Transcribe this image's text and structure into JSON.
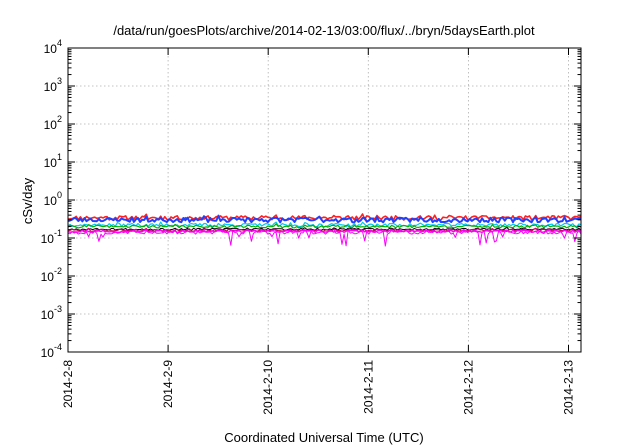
{
  "chart_data": {
    "type": "line",
    "title": "/data/run/goesPlots/archive/2014-02-13/03:00/flux/../bryn/5daysEarth.plot",
    "xlabel": "Coordinated Universal Time (UTC)",
    "ylabel": "cSv/day",
    "yscale": "log",
    "ylim": [
      0.0001,
      10000
    ],
    "xlim": [
      "2014-02-08T00:00",
      "2014-02-13T03:00"
    ],
    "grid": true,
    "x_ticks": [
      {
        "label": "2014-2-8",
        "at": "2014-02-08T00:00"
      },
      {
        "label": "2014-2-9",
        "at": "2014-02-09T00:00"
      },
      {
        "label": "2014-2-10",
        "at": "2014-02-10T00:00"
      },
      {
        "label": "2014-2-11",
        "at": "2014-02-11T00:00"
      },
      {
        "label": "2014-2-12",
        "at": "2014-02-12T00:00"
      },
      {
        "label": "2014-2-13",
        "at": "2014-02-13T00:00"
      }
    ],
    "y_ticks": [
      {
        "base": "10",
        "exp": "-4",
        "value": 0.0001
      },
      {
        "base": "10",
        "exp": "-3",
        "value": 0.001
      },
      {
        "base": "10",
        "exp": "-2",
        "value": 0.01
      },
      {
        "base": "10",
        "exp": "-1",
        "value": 0.1
      },
      {
        "base": "10",
        "exp": "0",
        "value": 1
      },
      {
        "base": "10",
        "exp": "1",
        "value": 10
      },
      {
        "base": "10",
        "exp": "2",
        "value": 100
      },
      {
        "base": "10",
        "exp": "3",
        "value": 1000
      },
      {
        "base": "10",
        "exp": "4",
        "value": 10000
      }
    ],
    "series": [
      {
        "color": "#ff2020",
        "width": 1.6,
        "level": 0.34,
        "jitter": 0.13,
        "spike_depth": 0.0,
        "seed": 11
      },
      {
        "color": "#2040ff",
        "width": 2.0,
        "level": 0.3,
        "jitter": 0.14,
        "spike_depth": 0.0,
        "seed": 23
      },
      {
        "color": "#00c8e8",
        "width": 1.2,
        "level": 0.22,
        "jitter": 0.1,
        "spike_depth": 0.0,
        "seed": 37
      },
      {
        "color": "#00b000",
        "width": 1.2,
        "level": 0.2,
        "jitter": 0.08,
        "spike_depth": 0.0,
        "seed": 41
      },
      {
        "color": "#ff00ff",
        "width": 1.0,
        "level": 0.14,
        "jitter": 0.1,
        "spike_depth": 0.45,
        "seed": 53
      },
      {
        "color": "#000000",
        "width": 1.0,
        "level": 0.17,
        "jitter": 0.06,
        "spike_depth": 0.0,
        "seed": 67
      },
      {
        "color": "#d00060",
        "width": 1.2,
        "level": 0.16,
        "jitter": 0.07,
        "spike_depth": 0.0,
        "seed": 79
      },
      {
        "color": "#ff00ff",
        "width": 1.4,
        "level": 0.15,
        "jitter": 0.06,
        "spike_depth": 0.0,
        "seed": 97
      }
    ]
  }
}
